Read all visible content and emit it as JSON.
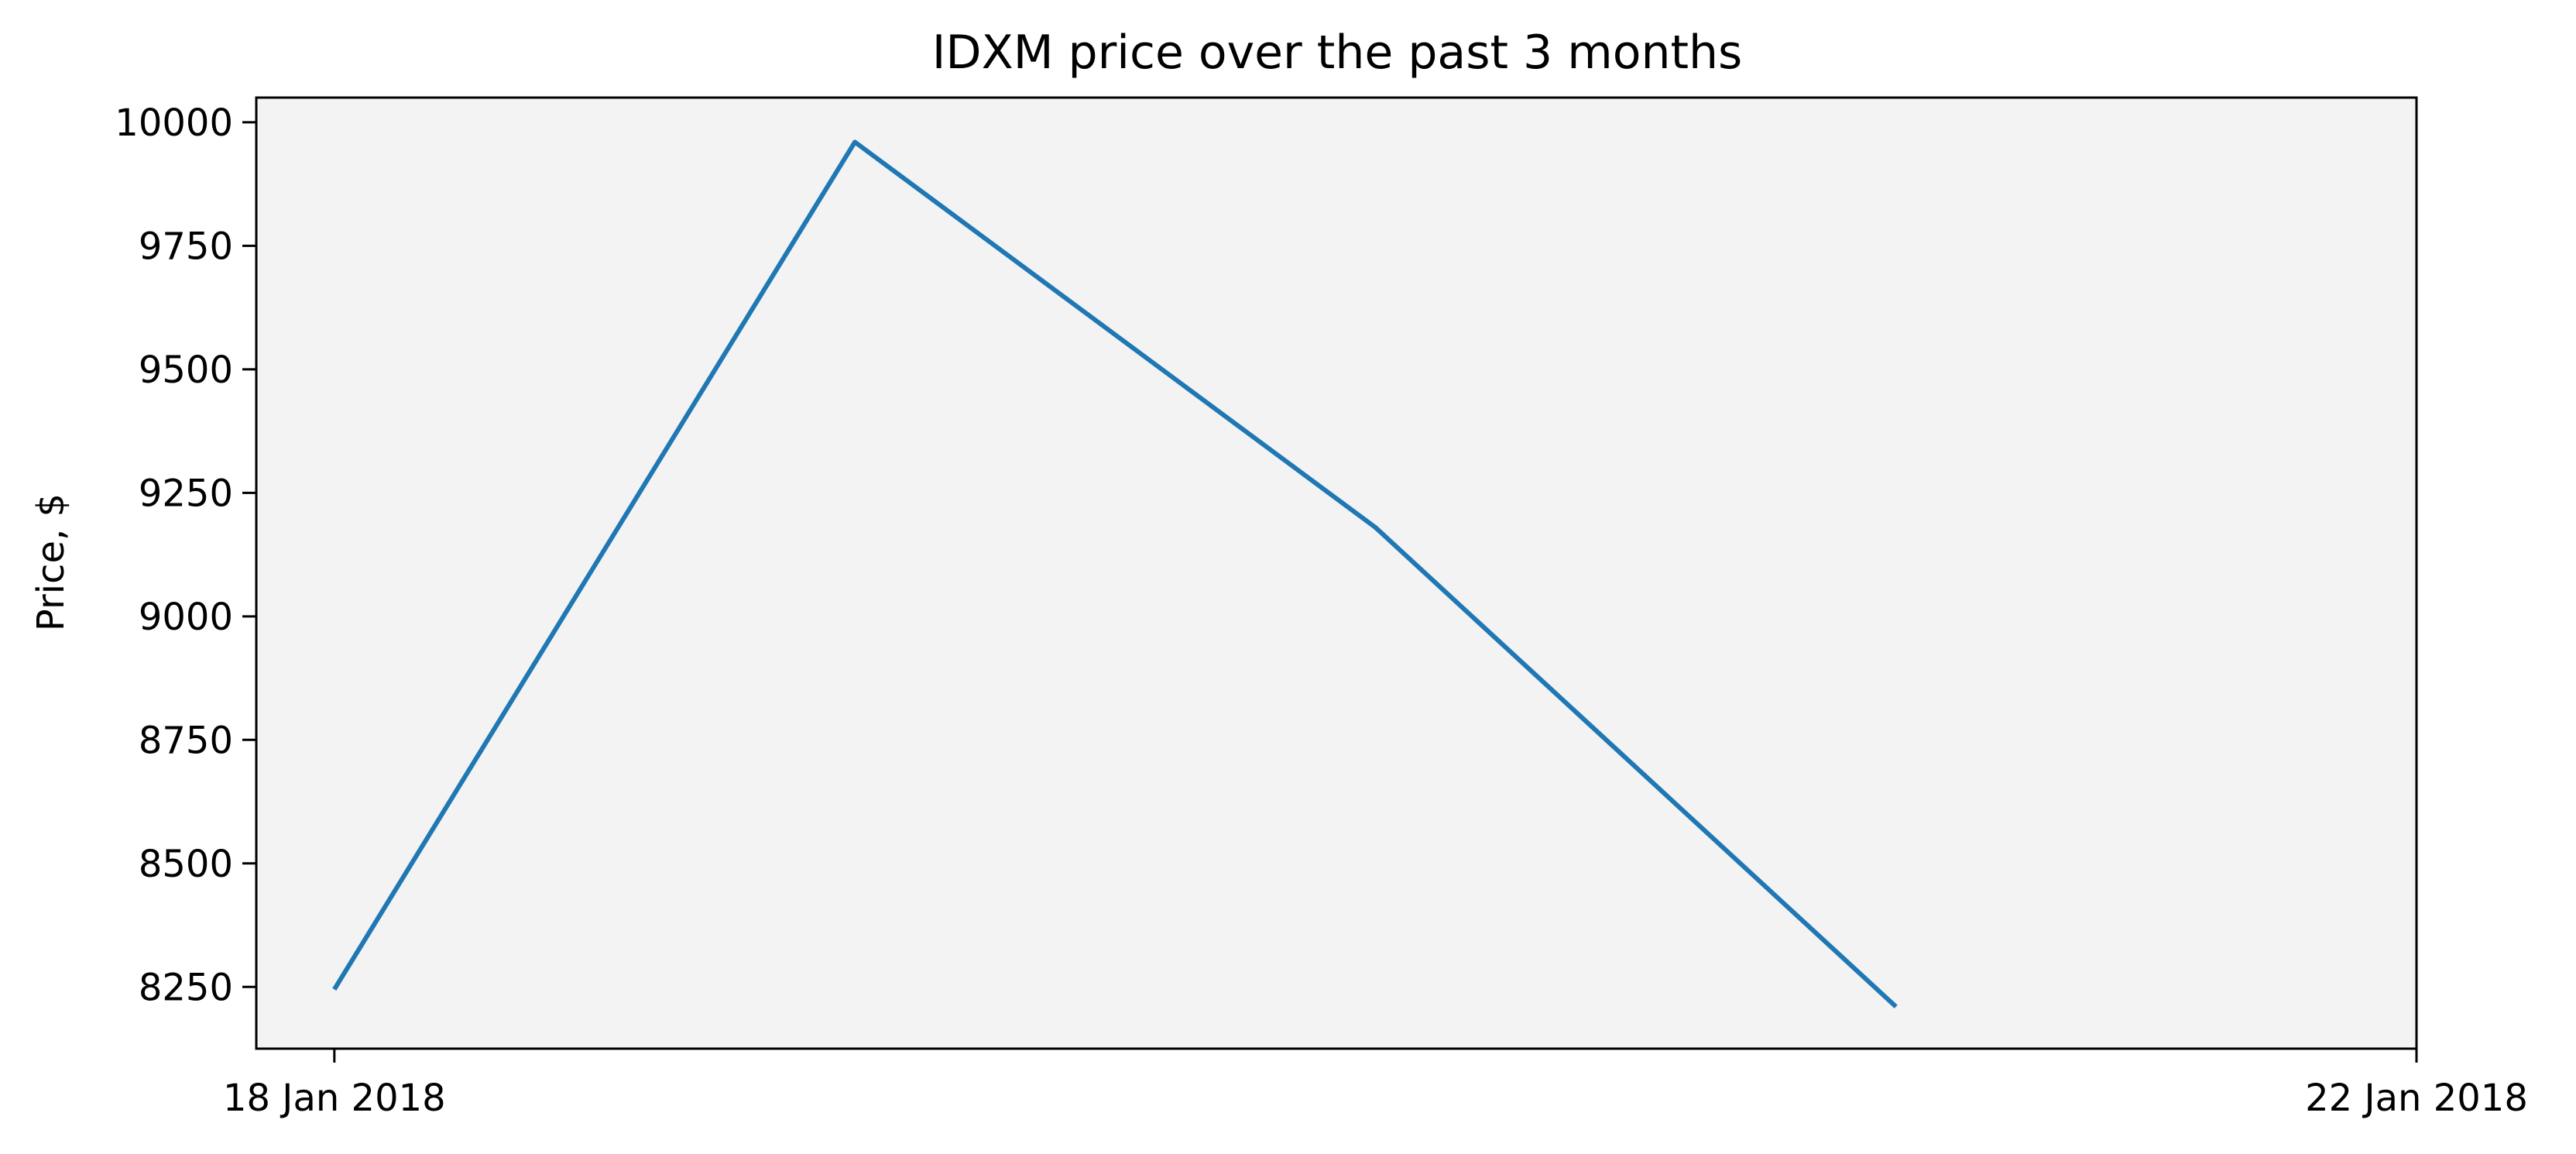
{
  "chart_data": {
    "type": "line",
    "title": "IDXM price over the past 3 months",
    "xlabel": "",
    "ylabel": "Price, $",
    "x": [
      "2018-01-18",
      "2018-01-19",
      "2018-01-20",
      "2018-01-21"
    ],
    "xlim": [
      "2018-01-17T20:24",
      "2018-01-22"
    ],
    "xticks": [
      {
        "x": "2018-01-18",
        "label": "18 Jan 2018"
      },
      {
        "x": "2018-01-22",
        "label": "22 Jan 2018"
      }
    ],
    "series": [
      {
        "values": [
          8245,
          9960,
          9180,
          8210
        ],
        "color": "#1f77b4"
      }
    ],
    "ylim": [
      8125,
      10050
    ],
    "yticks": [
      8250,
      8500,
      8750,
      9000,
      9250,
      9500,
      9750,
      10000
    ],
    "grid": false,
    "plot_background": "#f3f3f3"
  }
}
